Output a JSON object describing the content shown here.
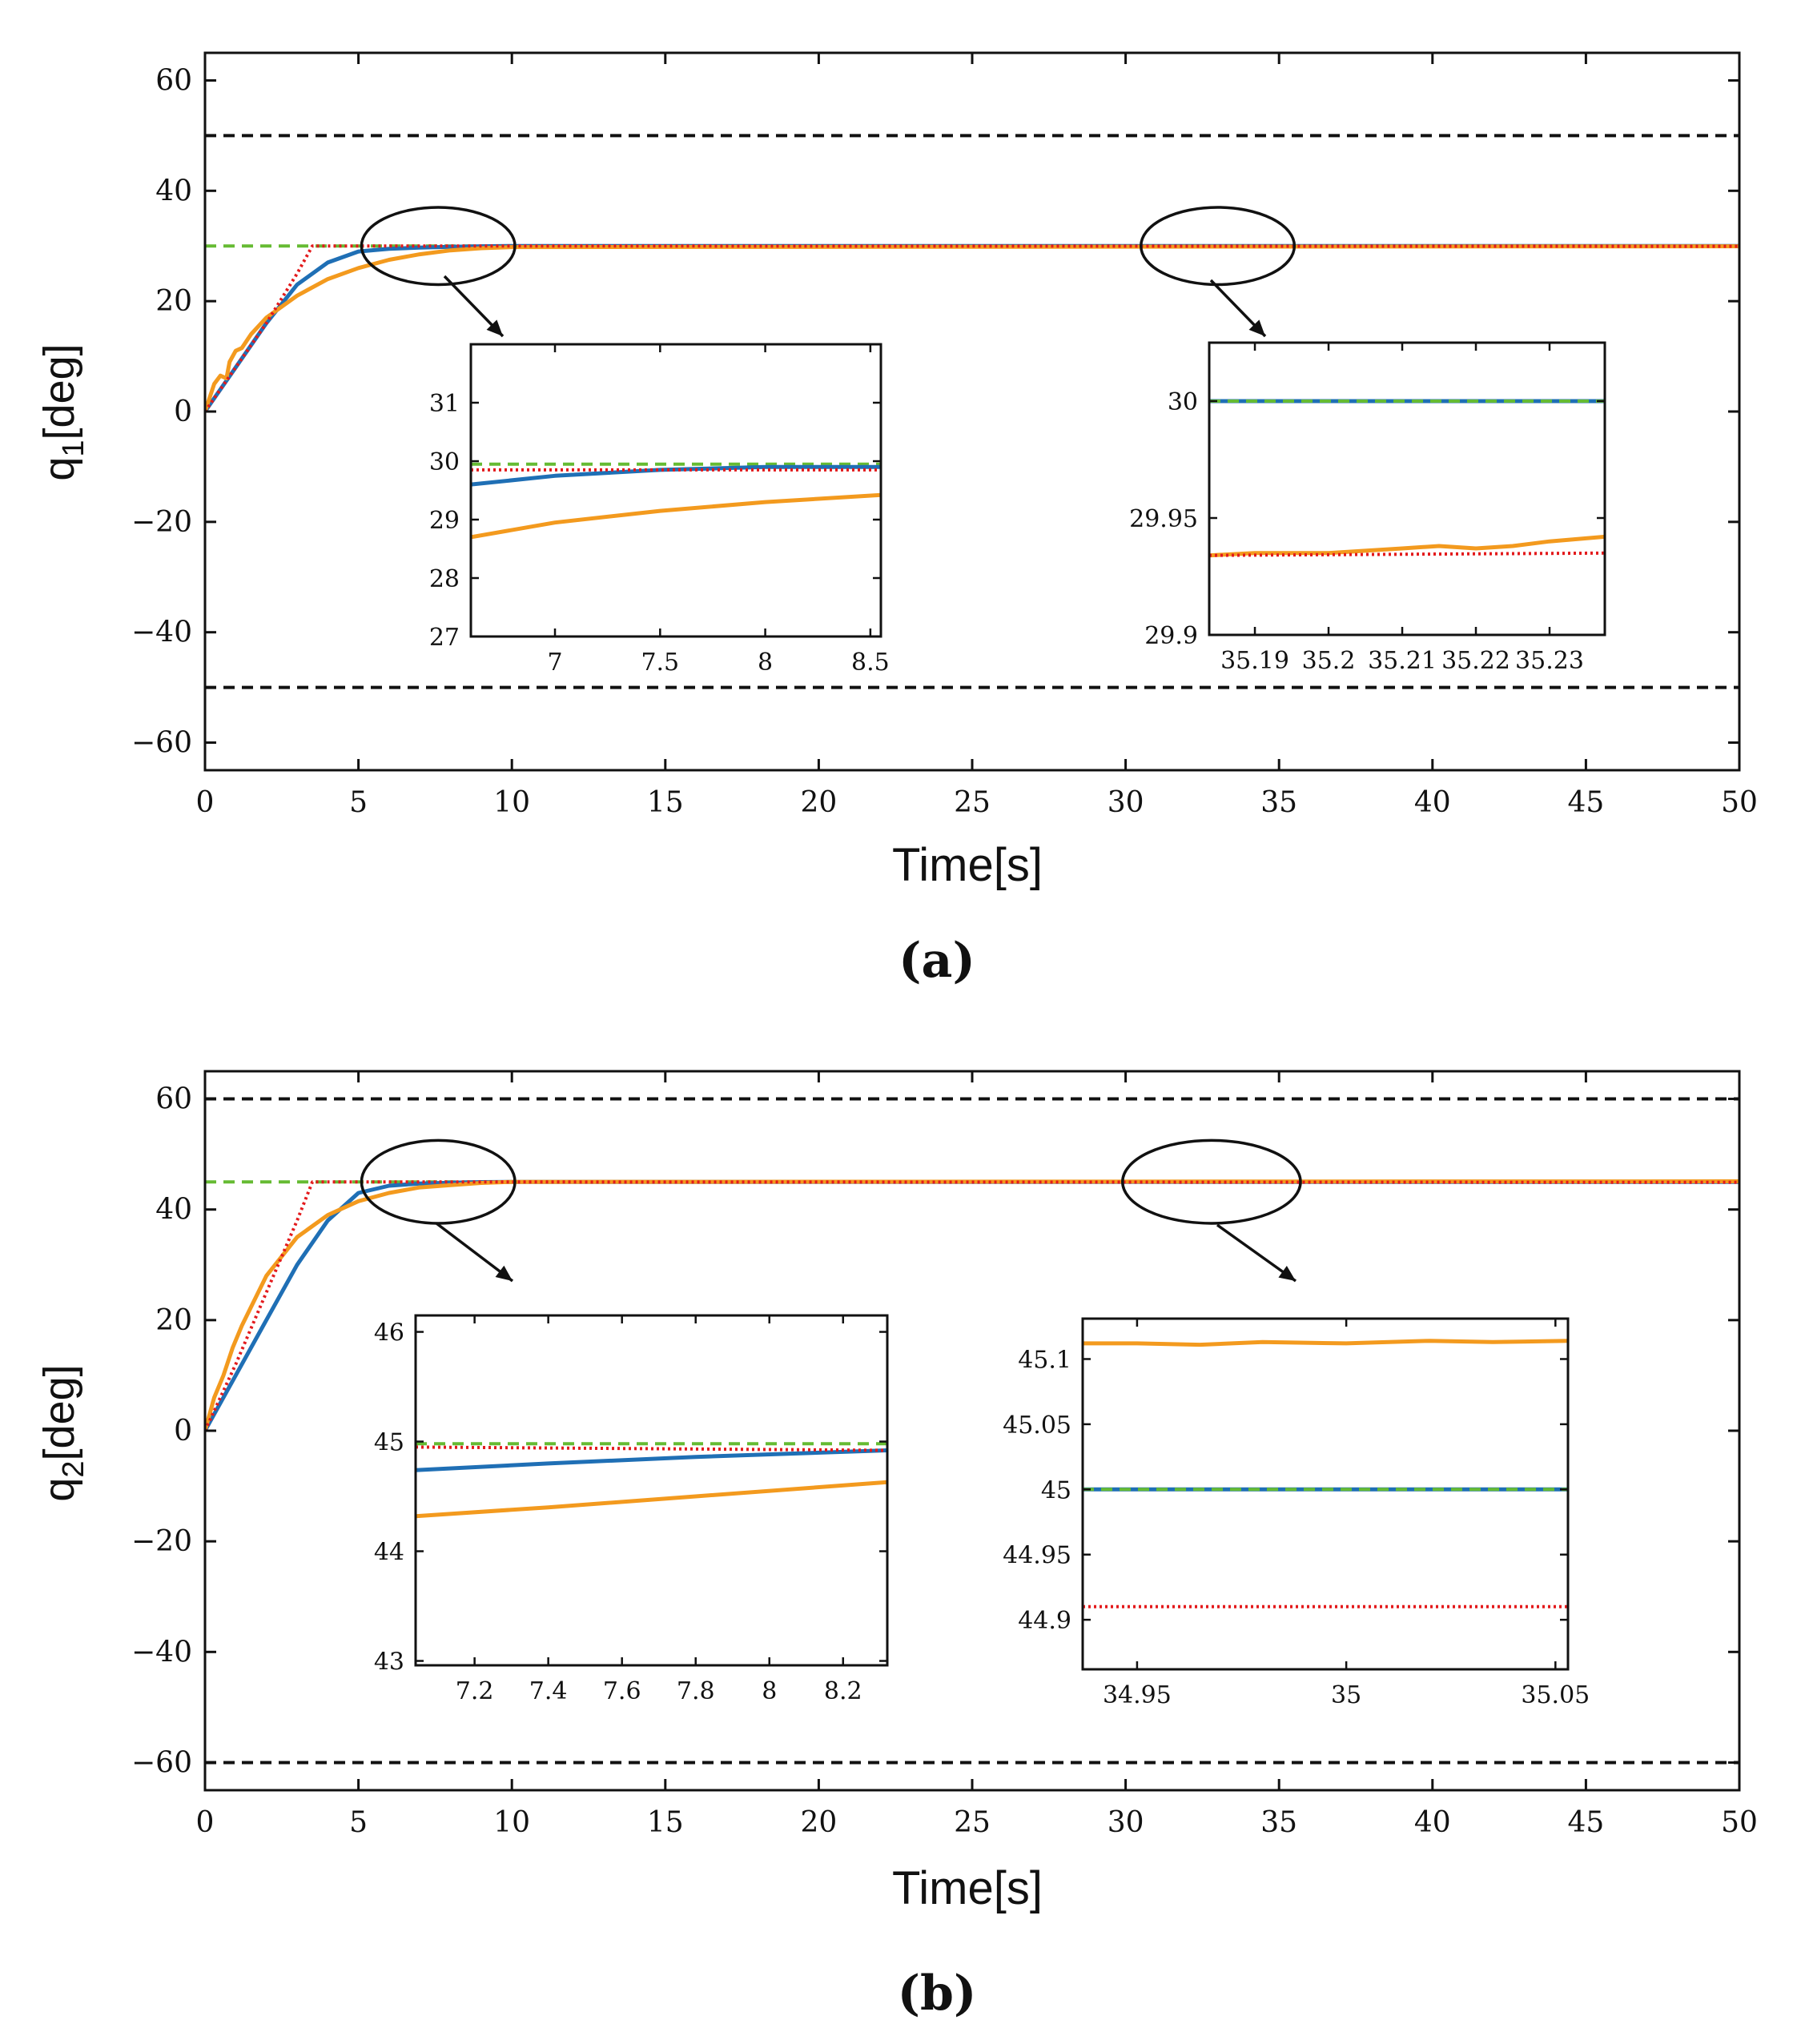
{
  "colors": {
    "reference": "#66BB33",
    "blue": "#1F6FB5",
    "orange": "#F39A1E",
    "red": "#E31A1C",
    "bound": "#111111"
  },
  "chart_data": [
    {
      "panel_label": "(a)",
      "type": "line",
      "xlabel": "Time[s]",
      "ylabel_main": "q",
      "ylabel_sub": "1",
      "ylabel_suffix": "[deg]",
      "xlim": [
        0,
        50
      ],
      "ylim": [
        -65,
        65
      ],
      "xticks": [
        0,
        5,
        10,
        15,
        20,
        25,
        30,
        35,
        40,
        45,
        50
      ],
      "yticks": [
        -60,
        -40,
        -20,
        0,
        20,
        40,
        60
      ],
      "yticklabels": [
        "−60",
        "−40",
        "−20",
        "0",
        "20",
        "40",
        "60"
      ],
      "series": [
        {
          "name": "upper bound",
          "style": "black-dashed",
          "x": [
            0,
            50
          ],
          "y": [
            50,
            50
          ]
        },
        {
          "name": "lower bound",
          "style": "black-dashed",
          "x": [
            0,
            50
          ],
          "y": [
            -50,
            -50
          ]
        },
        {
          "name": "reference",
          "style": "green-dashed",
          "x": [
            0,
            50
          ],
          "y": [
            30,
            30
          ]
        },
        {
          "name": "blue response",
          "style": "blue",
          "x": [
            0,
            1,
            2,
            3,
            4,
            5,
            6,
            7,
            8,
            9,
            10,
            50
          ],
          "y": [
            0,
            8,
            16,
            23,
            27,
            29,
            29.5,
            29.7,
            29.85,
            29.95,
            30,
            30
          ]
        },
        {
          "name": "orange response",
          "style": "orange",
          "x": [
            0,
            0.3,
            0.5,
            0.7,
            0.8,
            1.0,
            1.2,
            1.5,
            2,
            3,
            4,
            5,
            6,
            7,
            8,
            9,
            10,
            50
          ],
          "y": [
            0,
            5,
            6.5,
            6,
            9,
            11,
            11.5,
            14,
            17,
            21,
            24,
            26,
            27.5,
            28.5,
            29.2,
            29.6,
            29.8,
            29.95
          ]
        },
        {
          "name": "red dotted",
          "style": "red-dotted",
          "x": [
            0,
            1,
            2,
            3,
            3.5,
            50
          ],
          "y": [
            0,
            8,
            16,
            25,
            30,
            29.94
          ]
        }
      ],
      "zoom_markers": [
        {
          "cx": 7.6,
          "cy": 30,
          "rx": 2.5,
          "ry": 7
        },
        {
          "cx": 33,
          "cy": 30,
          "rx": 2.5,
          "ry": 7
        }
      ],
      "insets": [
        {
          "xlim": [
            6.6,
            8.55
          ],
          "ylim": [
            27,
            32
          ],
          "xticks": [
            7,
            7.5,
            8,
            8.5
          ],
          "xticklabels": [
            "7",
            "7.5",
            "8",
            "8.5"
          ],
          "yticks": [
            27,
            28,
            29,
            30,
            31
          ],
          "yticklabels": [
            "27",
            "28",
            "29",
            "30",
            "31"
          ],
          "series": [
            {
              "style": "green-dashed",
              "x": [
                6.6,
                8.55
              ],
              "y": [
                29.95,
                29.95
              ]
            },
            {
              "style": "blue",
              "x": [
                6.6,
                7.0,
                7.5,
                8.0,
                8.55
              ],
              "y": [
                29.6,
                29.75,
                29.85,
                29.9,
                29.9
              ]
            },
            {
              "style": "orange",
              "x": [
                6.6,
                7.0,
                7.5,
                8.0,
                8.55
              ],
              "y": [
                28.7,
                28.95,
                29.15,
                29.3,
                29.42
              ]
            },
            {
              "style": "red-dotted",
              "x": [
                6.6,
                8.55
              ],
              "y": [
                29.85,
                29.85
              ]
            }
          ]
        },
        {
          "xlim": [
            35.1838,
            35.2375
          ],
          "ylim": [
            29.9,
            30.025
          ],
          "xticks": [
            35.19,
            35.2,
            35.21,
            35.22,
            35.23
          ],
          "xticklabels": [
            "35.19",
            "35.2",
            "35.21",
            "35.22",
            "35.23"
          ],
          "yticks": [
            29.9,
            29.95,
            30
          ],
          "yticklabels": [
            "29.9",
            "29.95",
            "30"
          ],
          "series": [
            {
              "style": "blue",
              "x": [
                35.1838,
                35.2375
              ],
              "y": [
                30,
                30
              ]
            },
            {
              "style": "green-dashed",
              "x": [
                35.1838,
                35.2375
              ],
              "y": [
                30,
                30
              ]
            },
            {
              "style": "orange",
              "x": [
                35.1838,
                35.19,
                35.2,
                35.21,
                35.215,
                35.22,
                35.225,
                35.23,
                35.2375
              ],
              "y": [
                29.934,
                29.935,
                29.935,
                29.937,
                29.938,
                29.937,
                29.938,
                29.94,
                29.942
              ]
            },
            {
              "style": "red-dotted",
              "x": [
                35.1838,
                35.2375
              ],
              "y": [
                29.934,
                29.935
              ]
            }
          ]
        }
      ]
    },
    {
      "panel_label": "(b)",
      "type": "line",
      "xlabel": "Time[s]",
      "ylabel_main": "q",
      "ylabel_sub": "2",
      "ylabel_suffix": "[deg]",
      "xlim": [
        0,
        50
      ],
      "ylim": [
        -65,
        65
      ],
      "xticks": [
        0,
        5,
        10,
        15,
        20,
        25,
        30,
        35,
        40,
        45,
        50
      ],
      "yticks": [
        -60,
        -40,
        -20,
        0,
        20,
        40,
        60
      ],
      "yticklabels": [
        "−60",
        "−40",
        "−20",
        "0",
        "20",
        "40",
        "60"
      ],
      "series": [
        {
          "name": "upper bound",
          "style": "black-dashed",
          "x": [
            0,
            50
          ],
          "y": [
            60,
            60
          ]
        },
        {
          "name": "lower bound",
          "style": "black-dashed",
          "x": [
            0,
            50
          ],
          "y": [
            -60,
            -60
          ]
        },
        {
          "name": "reference",
          "style": "green-dashed",
          "x": [
            0,
            50
          ],
          "y": [
            45,
            45
          ]
        },
        {
          "name": "blue response",
          "style": "blue",
          "x": [
            0,
            1,
            2,
            3,
            4,
            5,
            6,
            7,
            8,
            9,
            10,
            50
          ],
          "y": [
            0,
            10,
            20,
            30,
            38,
            43,
            44.3,
            44.7,
            44.85,
            44.95,
            45,
            45
          ]
        },
        {
          "name": "orange response",
          "style": "orange",
          "x": [
            0,
            0.3,
            0.6,
            0.9,
            1.2,
            2,
            3,
            4,
            5,
            6,
            7,
            8,
            9,
            10,
            50
          ],
          "y": [
            0,
            6,
            10,
            15,
            19,
            28,
            35,
            39,
            41.5,
            43,
            44,
            44.4,
            44.8,
            45,
            45.1
          ]
        },
        {
          "name": "red dotted",
          "style": "red-dotted",
          "x": [
            0,
            1,
            2,
            3,
            3.5,
            50
          ],
          "y": [
            0,
            12,
            25,
            38,
            45,
            44.91
          ]
        }
      ],
      "zoom_markers": [
        {
          "cx": 7.6,
          "cy": 45,
          "rx": 2.5,
          "ry": 7.5
        },
        {
          "cx": 32.8,
          "cy": 45,
          "rx": 2.9,
          "ry": 7.5
        }
      ],
      "insets": [
        {
          "xlim": [
            7.04,
            8.32
          ],
          "ylim": [
            42.96,
            46.15
          ],
          "xticks": [
            7.2,
            7.4,
            7.6,
            7.8,
            8,
            8.2
          ],
          "xticklabels": [
            "7.2",
            "7.4",
            "7.6",
            "7.8",
            "8",
            "8.2"
          ],
          "yticks": [
            43,
            44,
            45,
            46
          ],
          "yticklabels": [
            "43",
            "44",
            "45",
            "46"
          ],
          "series": [
            {
              "style": "green-dashed",
              "x": [
                7.04,
                8.32
              ],
              "y": [
                44.98,
                44.98
              ]
            },
            {
              "style": "blue",
              "x": [
                7.04,
                7.4,
                7.8,
                8.32
              ],
              "y": [
                44.74,
                44.8,
                44.86,
                44.92
              ]
            },
            {
              "style": "orange",
              "x": [
                7.04,
                7.4,
                7.8,
                8.32
              ],
              "y": [
                44.32,
                44.4,
                44.5,
                44.63
              ]
            },
            {
              "style": "red-dotted",
              "x": [
                7.04,
                8.32
              ],
              "y": [
                44.95,
                44.92
              ]
            }
          ]
        },
        {
          "xlim": [
            34.937,
            35.053
          ],
          "ylim": [
            44.862,
            45.131
          ],
          "xticks": [
            34.95,
            35,
            35.05
          ],
          "xticklabels": [
            "34.95",
            "35",
            "35.05"
          ],
          "yticks": [
            44.9,
            44.95,
            45,
            45.05,
            45.1
          ],
          "yticklabels": [
            "44.9",
            "44.95",
            "45",
            "45.05",
            "45.1"
          ],
          "series": [
            {
              "style": "orange",
              "x": [
                34.937,
                34.95,
                34.965,
                34.98,
                35.0,
                35.02,
                35.035,
                35.053
              ],
              "y": [
                45.112,
                45.112,
                45.111,
                45.113,
                45.112,
                45.114,
                45.113,
                45.114
              ]
            },
            {
              "style": "blue",
              "x": [
                34.937,
                35.053
              ],
              "y": [
                45.0,
                45.0
              ]
            },
            {
              "style": "green-dashed",
              "x": [
                34.937,
                35.053
              ],
              "y": [
                45.0,
                45.0
              ]
            },
            {
              "style": "red-dotted",
              "x": [
                34.937,
                35.053
              ],
              "y": [
                44.91,
                44.91
              ]
            }
          ]
        }
      ]
    }
  ]
}
